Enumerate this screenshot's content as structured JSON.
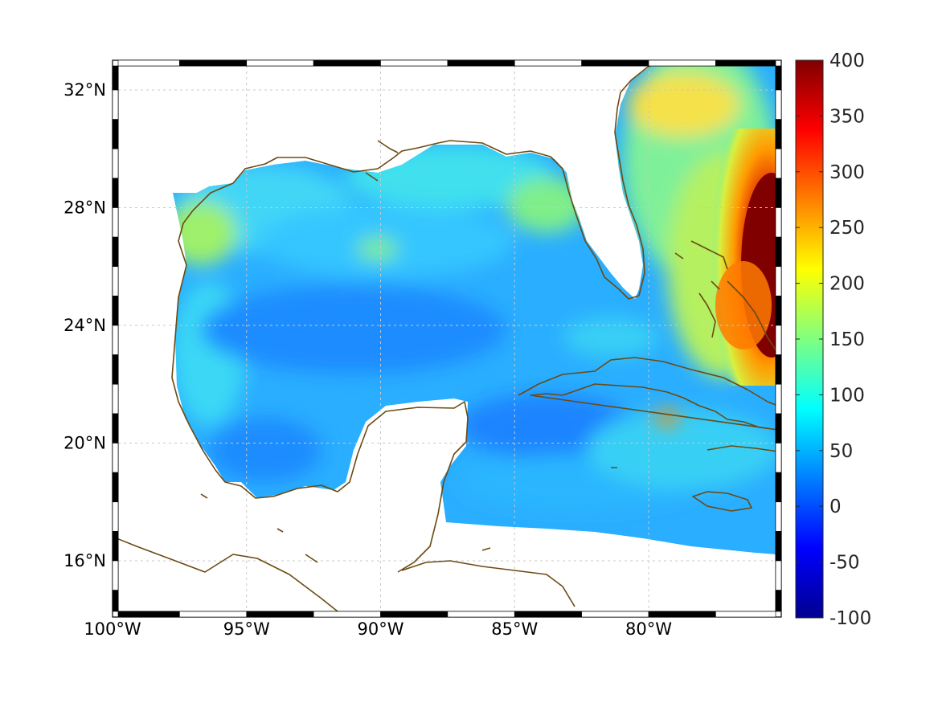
{
  "map": {
    "region": "Gulf of Mexico and Caribbean",
    "lon_range": [
      -100,
      -75
    ],
    "lat_range": [
      14,
      33
    ],
    "lon_ticks": [
      {
        "value": -100,
        "label": "100°W"
      },
      {
        "value": -95,
        "label": "95°W"
      },
      {
        "value": -90,
        "label": "90°W"
      },
      {
        "value": -85,
        "label": "85°W"
      },
      {
        "value": -80,
        "label": "80°W"
      }
    ],
    "lat_ticks": [
      {
        "value": 32,
        "label": "32°N"
      },
      {
        "value": 28,
        "label": "28°N"
      },
      {
        "value": 24,
        "label": "24°N"
      },
      {
        "value": 20,
        "label": "20°N"
      },
      {
        "value": 16,
        "label": "16°N"
      }
    ],
    "grid": true,
    "coastline_color": "#6b4a12",
    "field_description": "gridded scalar field over ocean, mostly 50–150; max >400 east of Florida/Bahamas"
  },
  "colorbar": {
    "colormap": "jet",
    "min": -100,
    "max": 400,
    "ticks": [
      {
        "value": 400,
        "label": "400"
      },
      {
        "value": 350,
        "label": "350"
      },
      {
        "value": 300,
        "label": "300"
      },
      {
        "value": 250,
        "label": "250"
      },
      {
        "value": 200,
        "label": "200"
      },
      {
        "value": 150,
        "label": "150"
      },
      {
        "value": 100,
        "label": "100"
      },
      {
        "value": 50,
        "label": "50"
      },
      {
        "value": 0,
        "label": "0"
      },
      {
        "value": -50,
        "label": "-50"
      },
      {
        "value": -100,
        "label": "-100"
      }
    ]
  }
}
